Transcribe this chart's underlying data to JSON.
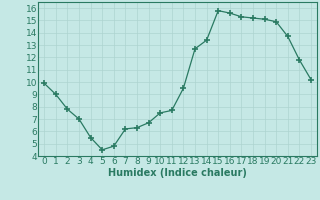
{
  "x": [
    0,
    1,
    2,
    3,
    4,
    5,
    6,
    7,
    8,
    9,
    10,
    11,
    12,
    13,
    14,
    15,
    16,
    17,
    18,
    19,
    20,
    21,
    22,
    23
  ],
  "y": [
    9.9,
    9.0,
    7.8,
    7.0,
    5.5,
    4.5,
    4.8,
    6.2,
    6.3,
    6.7,
    7.5,
    7.7,
    9.5,
    12.7,
    13.4,
    15.8,
    15.6,
    15.3,
    15.2,
    15.1,
    14.9,
    13.7,
    11.8,
    10.2
  ],
  "xlabel": "Humidex (Indice chaleur)",
  "xlim": [
    -0.5,
    23.5
  ],
  "ylim": [
    4,
    16.5
  ],
  "yticks": [
    4,
    5,
    6,
    7,
    8,
    9,
    10,
    11,
    12,
    13,
    14,
    15,
    16
  ],
  "xticks": [
    0,
    1,
    2,
    3,
    4,
    5,
    6,
    7,
    8,
    9,
    10,
    11,
    12,
    13,
    14,
    15,
    16,
    17,
    18,
    19,
    20,
    21,
    22,
    23
  ],
  "line_color": "#2a7a62",
  "marker_color": "#2a7a62",
  "bg_color": "#c5e8e5",
  "grid_color": "#aed4d0",
  "label_fontsize": 7,
  "tick_fontsize": 6.5
}
